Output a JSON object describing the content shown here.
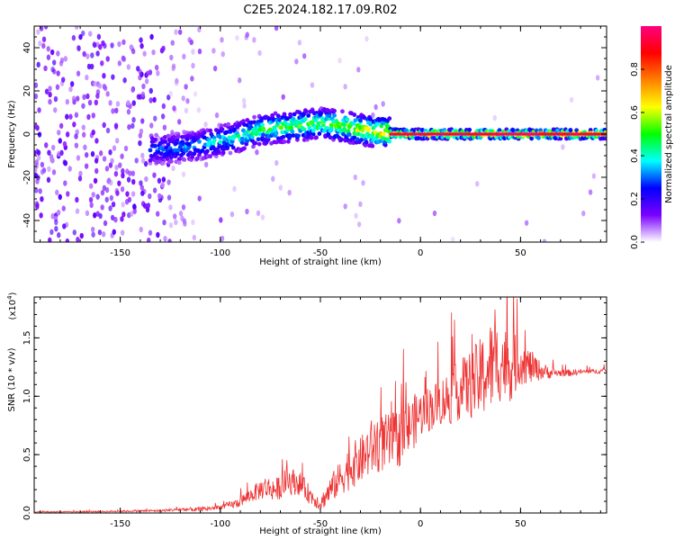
{
  "title": "C2E5.2024.182.17.09.R02",
  "chart_data": [
    {
      "type": "heatmap",
      "xlabel": "Height of straight line (km)",
      "ylabel": "Frequency (Hz)",
      "xlim": [
        -193,
        93
      ],
      "ylim": [
        -50,
        50
      ],
      "x_ticks": [
        -150,
        -100,
        -50,
        0,
        50
      ],
      "x_tick_labels": [
        "-150",
        "-100",
        "-50",
        "0",
        "50"
      ],
      "y_ticks": [
        -40,
        -20,
        0,
        20,
        40
      ],
      "y_tick_labels": [
        "-40",
        "-20",
        "0",
        "20",
        "40"
      ],
      "colorbar": {
        "label": "Normalized spectral amplitude",
        "range": [
          0,
          1
        ],
        "ticks": [
          0.0,
          0.2,
          0.4,
          0.6,
          0.8
        ],
        "tick_labels": [
          "0.0",
          "0.2",
          "0.4",
          "0.6",
          "0.8"
        ],
        "colormap": [
          "#ffffff",
          "#7a00ff",
          "#0000ff",
          "#00ffff",
          "#00ff00",
          "#ffff00",
          "#ff8000",
          "#ff0000",
          "#ff0080"
        ]
      },
      "ridge": {
        "x": [
          -125,
          -110,
          -100,
          -90,
          -80,
          -70,
          -60,
          -50,
          -40,
          -30,
          -20,
          -10,
          0,
          20,
          40,
          60,
          93
        ],
        "y": [
          -7,
          -5,
          -3,
          -1,
          2,
          3,
          4,
          5,
          4,
          2,
          1,
          0,
          0,
          0,
          0,
          0,
          0
        ],
        "amplitude": [
          0.35,
          0.4,
          0.45,
          0.5,
          0.55,
          0.58,
          0.6,
          0.6,
          0.65,
          0.7,
          0.75,
          0.9,
          0.9,
          0.92,
          0.92,
          0.92,
          0.92
        ]
      },
      "grid": false
    },
    {
      "type": "line",
      "xlabel": "Height of straight line (km)",
      "ylabel": "SNR (10 * v/v)",
      "y_scale_label": "(x10",
      "y_scale_exponent": "4",
      "xlim": [
        -193,
        93
      ],
      "ylim": [
        0,
        1.85
      ],
      "x_ticks": [
        -150,
        -100,
        -50,
        0,
        50
      ],
      "x_tick_labels": [
        "-150",
        "-100",
        "-50",
        "0",
        "50"
      ],
      "y_ticks": [
        0.0,
        0.5,
        1.0,
        1.5
      ],
      "y_tick_labels": [
        "0.0",
        "0.5",
        "1.0",
        "1.5"
      ],
      "color": "#ee3333",
      "series": [
        {
          "x": [
            -193,
            -170,
            -150,
            -130,
            -120,
            -110,
            -100,
            -92,
            -85,
            -78,
            -72,
            -66,
            -60,
            -55,
            -50,
            -45,
            -40,
            -35,
            -30,
            -25,
            -20,
            -15,
            -10,
            -5,
            0,
            5,
            10,
            15,
            20,
            25,
            30,
            35,
            40,
            45,
            50,
            55,
            60,
            65,
            70,
            75,
            80,
            85,
            93
          ],
          "y": [
            0.01,
            0.01,
            0.015,
            0.02,
            0.03,
            0.03,
            0.05,
            0.08,
            0.15,
            0.22,
            0.2,
            0.28,
            0.25,
            0.15,
            0.08,
            0.2,
            0.3,
            0.4,
            0.45,
            0.55,
            0.6,
            0.6,
            0.65,
            0.75,
            0.85,
            0.9,
            0.95,
            1.0,
            1.05,
            1.1,
            1.15,
            1.25,
            1.3,
            1.25,
            1.3,
            1.25,
            1.22,
            1.2,
            1.2,
            1.2,
            1.21,
            1.21,
            1.22
          ],
          "noise": [
            0.005,
            0.005,
            0.008,
            0.01,
            0.015,
            0.02,
            0.02,
            0.04,
            0.06,
            0.1,
            0.1,
            0.12,
            0.1,
            0.08,
            0.06,
            0.12,
            0.15,
            0.2,
            0.2,
            0.25,
            0.25,
            0.25,
            0.25,
            0.25,
            0.2,
            0.2,
            0.2,
            0.25,
            0.25,
            0.3,
            0.35,
            0.4,
            0.35,
            0.3,
            0.2,
            0.15,
            0.08,
            0.05,
            0.03,
            0.03,
            0.02,
            0.02,
            0.02
          ]
        }
      ],
      "grid": false
    }
  ]
}
